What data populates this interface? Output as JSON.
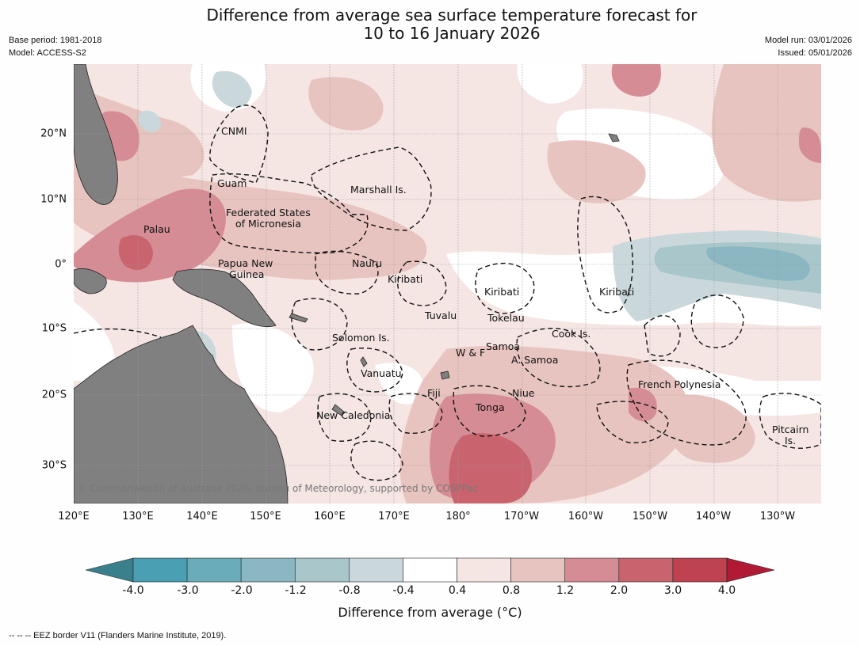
{
  "title": {
    "line1": "Difference from average sea surface temperature forecast for",
    "line2": "10 to 16 January 2026"
  },
  "meta": {
    "base_period": "Base period: 1981-2018",
    "model": "Model: ACCESS-S2",
    "model_run": "Model run: 03/01/2026",
    "issued": "Issued: 05/01/2026"
  },
  "map": {
    "longitude_labels": [
      "120°E",
      "130°E",
      "140°E",
      "150°E",
      "160°E",
      "170°E",
      "180°",
      "170°W",
      "160°W",
      "150°W",
      "140°W",
      "130°W"
    ],
    "latitude_labels": [
      "20°N",
      "10°N",
      "0°",
      "10°S",
      "20°S",
      "30°S"
    ],
    "regions": {
      "cnmi": "CNMI",
      "guam": "Guam",
      "marshall": "Marshall Is.",
      "fsm1": "Federated States",
      "fsm2": "of Micronesia",
      "palau": "Palau",
      "png1": "Papua New",
      "png2": "Guinea",
      "nauru": "Nauru",
      "kiribati_w": "Kiribati",
      "kiribati_c": "Kiribati",
      "kiribati_e": "Kiribati",
      "tuvalu": "Tuvalu",
      "tokelau": "Tokelau",
      "solomon": "Solomon Is.",
      "cook": "Cook Is.",
      "samoa": "Samoa",
      "wf": "W & F",
      "asamoa": "A. Samoa",
      "vanuatu": "Vanuatu",
      "fiji": "Fiji",
      "niue": "Niue",
      "tonga": "Tonga",
      "frenchpoly": "French Polynesia",
      "newcal": "New Caledonia",
      "pitcairn1": "Pitcairn",
      "pitcairn2": "Is."
    },
    "copyright": "© Commonwealth of Australia 2026, Bureau of Meteorology, supported by COSPPac"
  },
  "colorbar": {
    "ticks": [
      "-4.0",
      "-3.0",
      "-2.0",
      "-1.2",
      "-0.8",
      "-0.4",
      "0.4",
      "0.8",
      "1.2",
      "2.0",
      "3.0",
      "4.0"
    ],
    "colors": {
      "below_min": "#3a7f8c",
      "bins": [
        "#4a9fb3",
        "#6bacba",
        "#8ab7c1",
        "#a9c6cb",
        "#cad8dc",
        "#ffffff",
        "#f5e6e4",
        "#e8c4c0",
        "#d68c95",
        "#c9646e",
        "#bf4250"
      ],
      "above_max": "#b01a34"
    },
    "label": "Difference from average (°C)"
  },
  "land_color": "#808080",
  "footnote": "--  --  -- EEZ border V11 (Flanders Marine Institute, 2019)."
}
